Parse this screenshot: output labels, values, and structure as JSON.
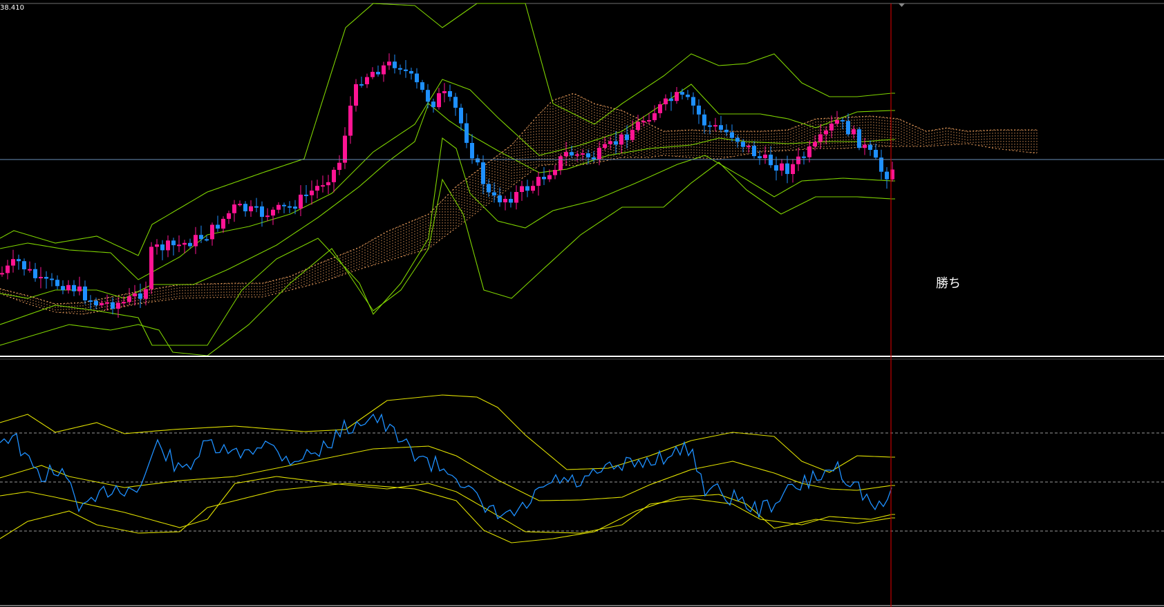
{
  "chart": {
    "price_label": "38.410",
    "annotation": "勝ち",
    "colors": {
      "background": "#000000",
      "bull": "#ff1493",
      "bear": "#1e90ff",
      "bollinger": "#7fd400",
      "cloud": "#f4a460",
      "rsi_line": "#1e90ff",
      "rsi_bands": "#e0e000",
      "level_lines": "#9a9a9a",
      "current_price_line": "#6a8fb8",
      "cursor_line": "#c00000",
      "separator": "#ffffff"
    }
  },
  "chart_data": [
    {
      "type": "candlestick",
      "panel": "price",
      "overlays": [
        "bollinger-bands",
        "ichimoku-cloud"
      ],
      "axis_label_visible": "38.410",
      "annotation": "勝ち"
    },
    {
      "type": "line",
      "panel": "oscillator",
      "overlays": [
        "bollinger-bands"
      ],
      "level_lines": 3
    }
  ]
}
